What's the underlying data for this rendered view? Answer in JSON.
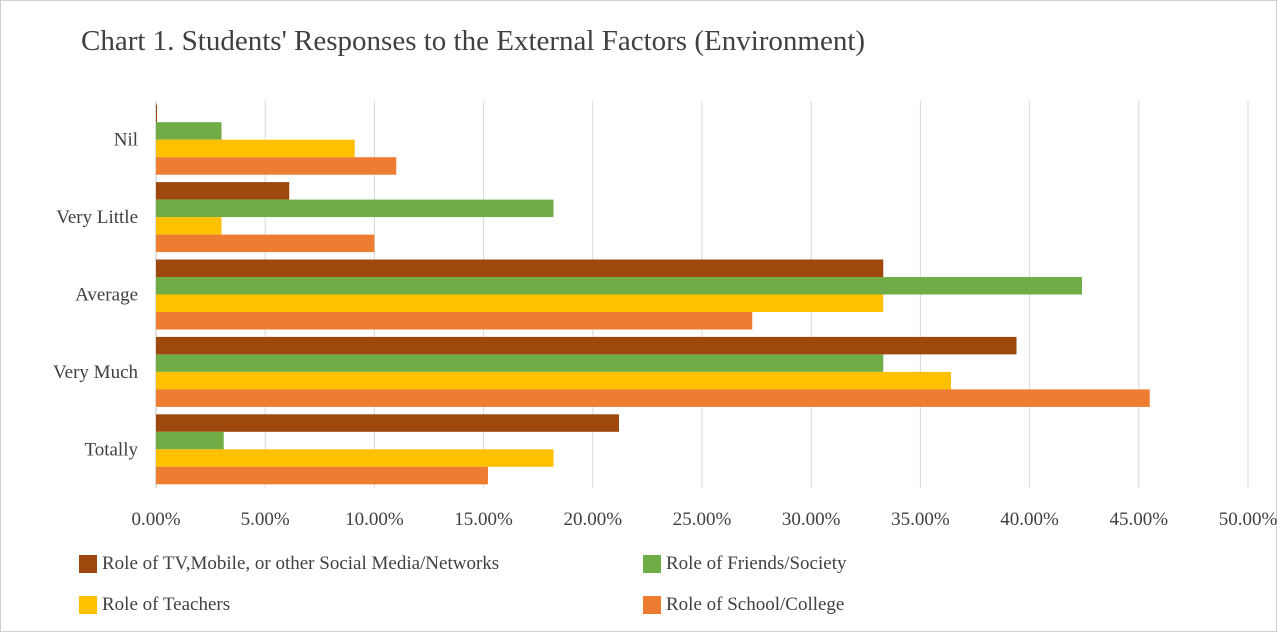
{
  "chart_data": {
    "type": "bar",
    "orientation": "horizontal",
    "title": "Chart 1. Students' Responses to the External Factors (Environment)",
    "categories": [
      "Nil",
      "Very Little",
      "Average",
      "Very Much",
      "Totally"
    ],
    "x_ticks": [
      "0.00%",
      "5.00%",
      "10.00%",
      "15.00%",
      "20.00%",
      "25.00%",
      "30.00%",
      "35.00%",
      "40.00%",
      "45.00%",
      "50.00%"
    ],
    "xlim": [
      0,
      50
    ],
    "grid": true,
    "legend_position": "bottom",
    "series": [
      {
        "name": "Role of TV,Mobile, or other Social Media/Networks",
        "color": "#9e480e",
        "values": [
          0,
          6.1,
          33.3,
          39.4,
          21.2
        ]
      },
      {
        "name": "Role of Friends/Society",
        "color": "#70ad47",
        "values": [
          3.0,
          18.2,
          42.4,
          33.3,
          3.1
        ]
      },
      {
        "name": "Role of Teachers",
        "color": "#ffc000",
        "values": [
          9.1,
          3.0,
          33.3,
          36.4,
          18.2
        ]
      },
      {
        "name": "Role of School/College",
        "color": "#ed7d31",
        "values": [
          11.0,
          10.0,
          27.3,
          45.5,
          15.2
        ]
      }
    ]
  }
}
